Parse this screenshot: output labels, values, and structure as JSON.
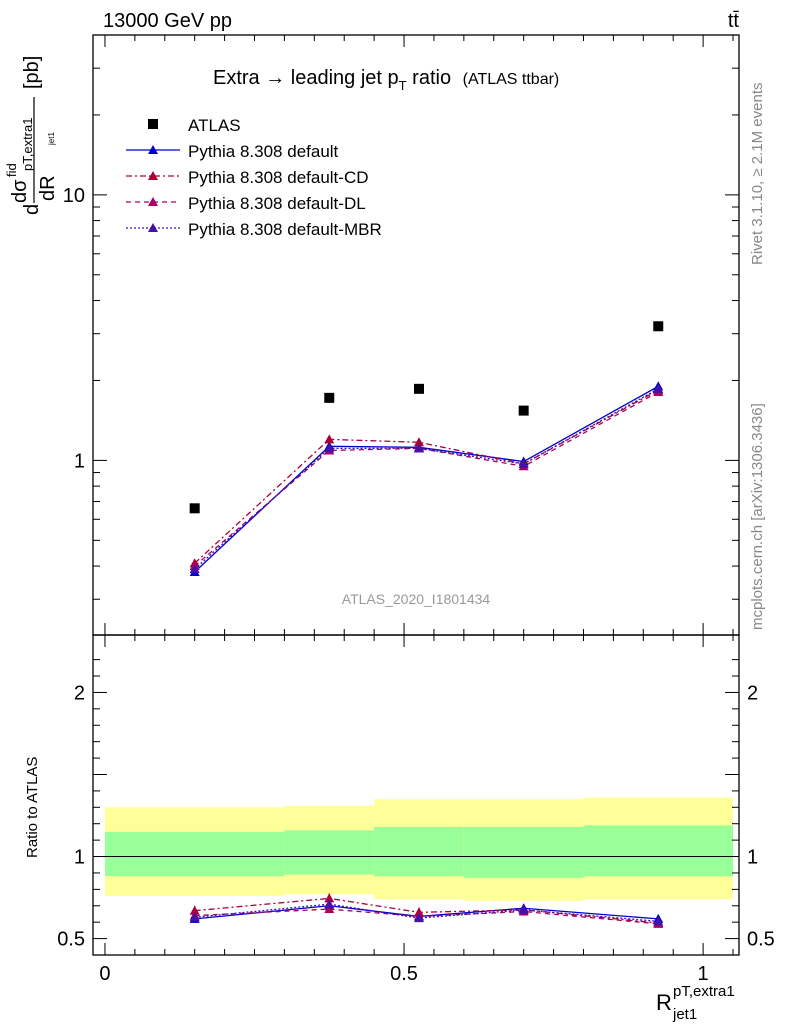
{
  "header": {
    "left": "13000 GeV pp",
    "right": "tt̄"
  },
  "side_labels": {
    "rivet": "Rivet 3.1.10, ≥ 2.1M events",
    "mcplots": "mcplots.cern.ch [arXiv:1306.3436]"
  },
  "chart_data": {
    "type": "scatter",
    "title_main": "Extra → leading jet p",
    "title_sub": "T",
    "title_tail": " ratio",
    "title_note": "(ATLAS ttbar)",
    "watermark": "ATLAS_2020_I1801434",
    "ylabel_main": {
      "d": "d",
      "numerator": "dσ",
      "num_sup": "fid",
      "den": "dR",
      "den_sup": "pT,extra1",
      "den_sub": "jet1",
      "unit": "[pb]"
    },
    "xlabel": {
      "base": "R",
      "sup": "pT,extra1",
      "sub": "jet1"
    },
    "ylabel_ratio": "Ratio to ATLAS",
    "xlim": [
      -0.02,
      1.06
    ],
    "ylim": [
      0.22,
      40
    ],
    "ratio_ylim": [
      0.4,
      2.35
    ],
    "log_y": true,
    "x_ticks": [
      {
        "value": 0,
        "label": "0"
      },
      {
        "value": 0.5,
        "label": "0.5"
      },
      {
        "value": 1,
        "label": "1"
      }
    ],
    "y_ticks": [
      {
        "value": 1,
        "label": "1"
      },
      {
        "value": 10,
        "label": "10"
      }
    ],
    "ratio_ticks": [
      {
        "value": 0.5,
        "label": "0.5"
      },
      {
        "value": 1,
        "label": "1"
      },
      {
        "value": 2,
        "label": "2"
      }
    ],
    "x_bins": [
      [
        0,
        0.3
      ],
      [
        0.3,
        0.45
      ],
      [
        0.45,
        0.6
      ],
      [
        0.6,
        0.8
      ],
      [
        0.8,
        1.05
      ]
    ],
    "x_centers": [
      0.15,
      0.375,
      0.525,
      0.7,
      0.925
    ],
    "data": {
      "name": "ATLAS",
      "color": "#000000",
      "values": [
        0.66,
        1.72,
        1.86,
        1.54,
        3.2
      ],
      "band_inner": [
        [
          0.88,
          1.15
        ],
        [
          0.89,
          1.16
        ],
        [
          0.88,
          1.18
        ],
        [
          0.87,
          1.18
        ],
        [
          0.88,
          1.19
        ]
      ],
      "band_outer": [
        [
          0.76,
          1.3
        ],
        [
          0.77,
          1.31
        ],
        [
          0.74,
          1.35
        ],
        [
          0.73,
          1.35
        ],
        [
          0.74,
          1.36
        ]
      ]
    },
    "series": [
      {
        "name": "Pythia 8.308 default",
        "color": "#0000cc",
        "dash": "",
        "values": [
          0.38,
          1.13,
          1.12,
          0.99,
          1.9
        ],
        "ratio": [
          0.62,
          0.7,
          0.635,
          0.685,
          0.62
        ],
        "ratio_err": [
          0.025,
          0.025,
          0.025,
          0.025,
          0.02
        ]
      },
      {
        "name": "Pythia 8.308 default-CD",
        "color": "#aa0033",
        "dash": "6,3,2,3",
        "values": [
          0.41,
          1.2,
          1.17,
          0.97,
          1.84
        ],
        "ratio": [
          0.67,
          0.745,
          0.66,
          0.675,
          0.595
        ],
        "ratio_err": [
          0.03,
          0.03,
          0.03,
          0.025,
          0.02
        ]
      },
      {
        "name": "Pythia 8.308 default-DL",
        "color": "#aa0066",
        "dash": "5,4",
        "values": [
          0.4,
          1.09,
          1.11,
          0.95,
          1.81
        ],
        "ratio": [
          0.64,
          0.68,
          0.635,
          0.665,
          0.59
        ],
        "ratio_err": [
          0.025,
          0.025,
          0.025,
          0.025,
          0.02
        ]
      },
      {
        "name": "Pythia 8.308 default-MBR",
        "color": "#4411aa",
        "dash": "2,2",
        "values": [
          0.39,
          1.11,
          1.11,
          0.97,
          1.86
        ],
        "ratio": [
          0.63,
          0.71,
          0.625,
          0.675,
          0.605
        ],
        "ratio_err": [
          0.025,
          0.025,
          0.025,
          0.025,
          0.02
        ]
      }
    ]
  }
}
